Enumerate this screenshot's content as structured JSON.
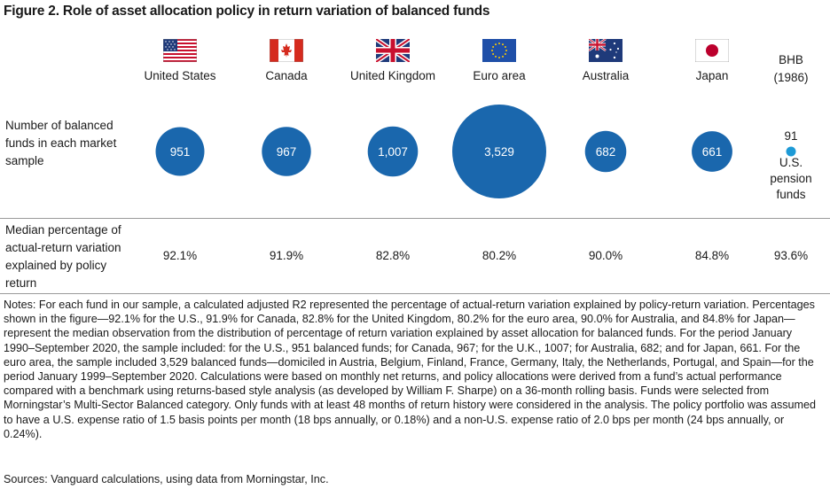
{
  "title": "Figure 2. Role of asset allocation policy in return variation of balanced funds",
  "row_labels": {
    "count": "Number of balanced funds in each market sample",
    "median": "Median percentage of actual-return variation explained by policy return"
  },
  "bhb": {
    "header": "BHB (1986)",
    "count": "91",
    "sub": "U.S. pension funds",
    "median": "93.6%"
  },
  "colors": {
    "bubble": "#1a67ad",
    "bhb_dot": "#1d9ad6",
    "divider": "#9a9a9a"
  },
  "chart_data": {
    "type": "bubble",
    "title": "Figure 2. Role of asset allocation policy in return variation of balanced funds",
    "categories": [
      "United States",
      "Canada",
      "United Kingdom",
      "Euro area",
      "Australia",
      "Japan",
      "BHB (1986)"
    ],
    "fund_counts": [
      951,
      967,
      1007,
      3529,
      682,
      661,
      91
    ],
    "fund_count_labels": [
      "951",
      "967",
      "1,007",
      "3,529",
      "682",
      "661",
      "91"
    ],
    "median_percent": [
      92.1,
      91.9,
      82.8,
      80.2,
      90.0,
      84.8,
      93.6
    ],
    "median_percent_labels": [
      "92.1%",
      "91.9%",
      "82.8%",
      "80.2%",
      "90.0%",
      "84.8%",
      "93.6%"
    ],
    "flags": [
      "flag-us-icon",
      "flag-canada-icon",
      "flag-uk-icon",
      "flag-eu-icon",
      "flag-australia-icon",
      "flag-japan-icon"
    ]
  },
  "notes": "Notes: For each fund in our sample, a calculated adjusted R2 represented the percentage of actual-return variation explained by policy-return variation. Percentages shown in the figure—92.1% for the U.S., 91.9% for Canada, 82.8% for the United Kingdom, 80.2% for the euro area, 90.0% for Australia, and 84.8% for Japan—represent the median observation from the distribution of percentage of return variation explained by asset allocation for balanced funds. For the period January  1990–September 2020, the sample included: for the U.S., 951 balanced funds; for Canada, 967; for the U.K., 1007; for Australia, 682; and for Japan, 661. For the euro area, the sample included 3,529 balanced funds—domiciled in Austria, Belgium, Finland, France, Germany, Italy, the Netherlands, Portugal, and Spain—for the period January 1999–September 2020. Calculations were based on monthly net returns, and policy allocations were derived from a fund’s actual performance compared with  a benchmark using returns-based style analysis (as developed by William F. Sharpe) on a 36-month rolling basis. Funds were selected from Morningstar’s Multi-Sector Balanced category. Only funds with at least 48 months of return history were considered in the analysis. The policy portfolio was assumed to have a U.S. expense ratio of 1.5 basis points per month (18 bps annually, or 0.18%) and a non-U.S. expense ratio of 2.0 bps per month (24 bps annually, or 0.24%).",
  "sources": "Sources: Vanguard calculations, using data from Morningstar, Inc."
}
